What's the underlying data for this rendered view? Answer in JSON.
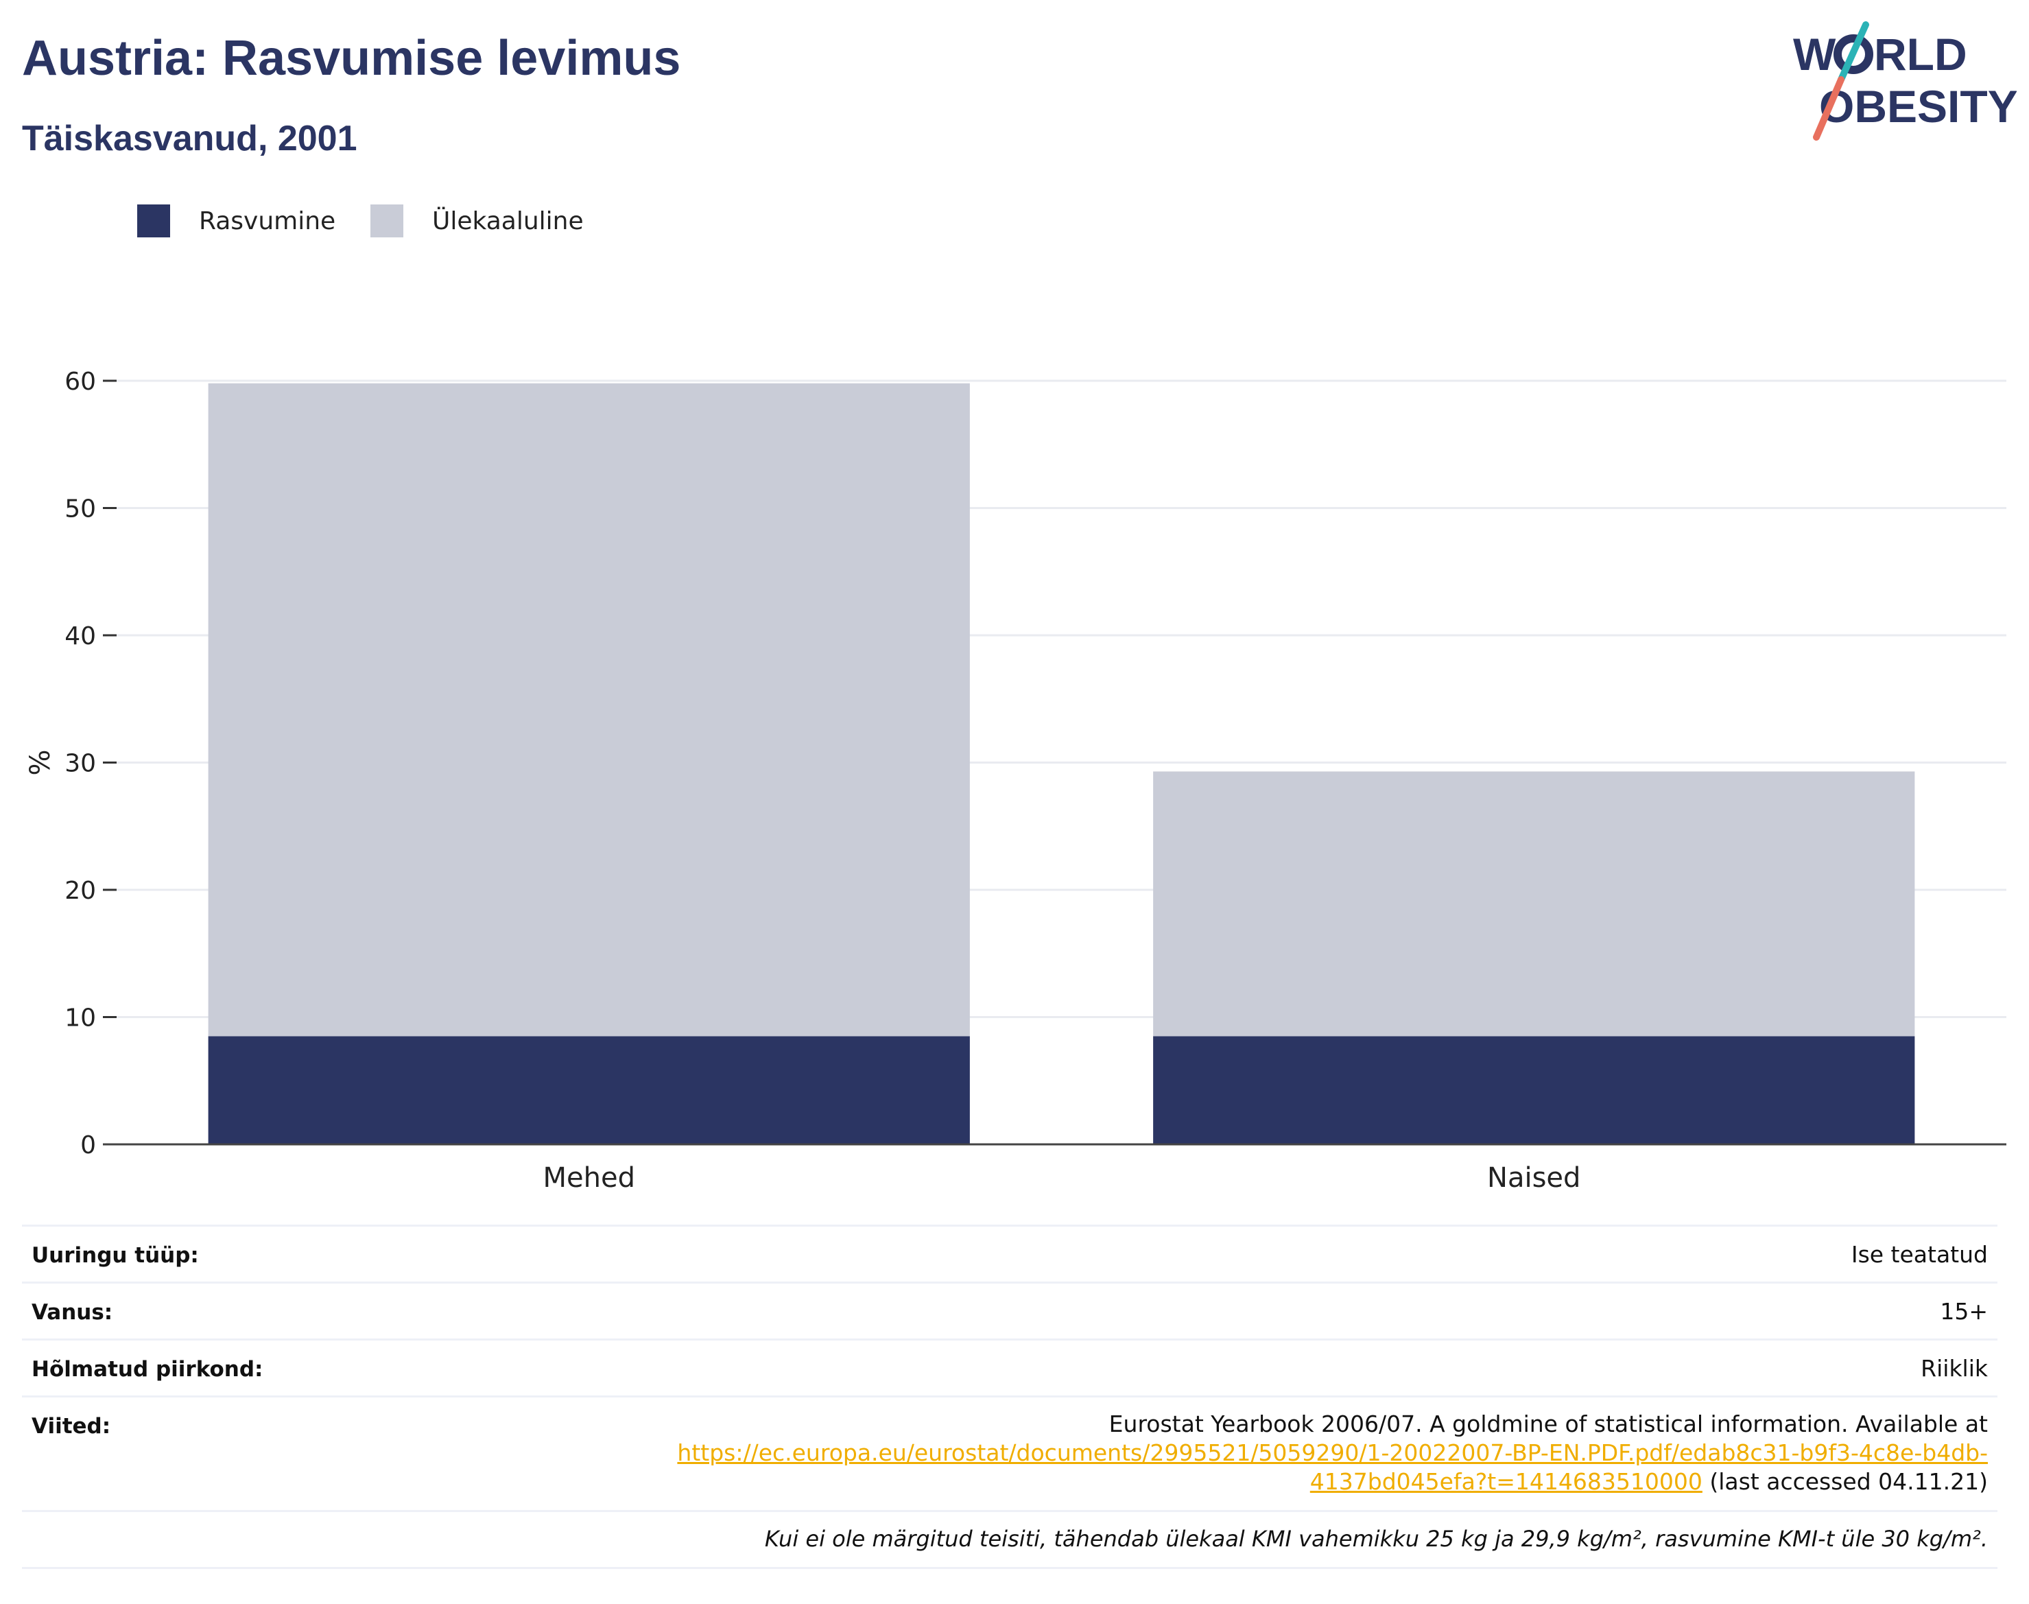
{
  "header": {
    "title": "Austria: Rasvumise levimus",
    "subtitle": "Täiskasvanud, 2001",
    "logo_text": [
      "W",
      "RLD",
      "OBESITY"
    ]
  },
  "legend": [
    {
      "label": "Rasvumine",
      "color": "#2b3563"
    },
    {
      "label": "Ülekaaluline",
      "color": "#c9ccd7"
    }
  ],
  "chart_data": {
    "type": "bar",
    "stacked": true,
    "categories": [
      "Mehed",
      "Naised"
    ],
    "series": [
      {
        "name": "Rasvumine",
        "color": "#2b3563",
        "values": [
          8.5,
          8.5
        ]
      },
      {
        "name": "Ülekaaluline",
        "color": "#c9ccd7",
        "values": [
          51.3,
          20.8
        ]
      }
    ],
    "ylabel": "%",
    "ylim": [
      0,
      60
    ],
    "yticks": [
      0,
      10,
      20,
      30,
      40,
      50,
      60
    ],
    "grid": true,
    "legend_position": "top-left"
  },
  "meta": {
    "rows": [
      {
        "key": "Uuringu tüüp:",
        "value": "Ise teatatud"
      },
      {
        "key": "Vanus:",
        "value": "15+"
      },
      {
        "key": "Hõlmatud piirkond:",
        "value": "Riiklik"
      }
    ],
    "references": {
      "key": "Viited:",
      "text_before": "Eurostat Yearbook 2006/07. A goldmine of statistical information. Available at",
      "link": "https://ec.europa.eu/eurostat/documents/2995521/5059290/1-20022007-BP-EN.PDF.pdf/edab8c31-b9f3-4c8e-b4db-4137bd045efa?t=1414683510000",
      "text_after": "(last accessed 04.11.21)"
    },
    "note": "Kui ei ole märgitud teisiti, tähendab ülekaal KMI vahemikku 25 kg ja 29,9 kg/m², rasvumine KMI-t üle 30 kg/m²."
  }
}
